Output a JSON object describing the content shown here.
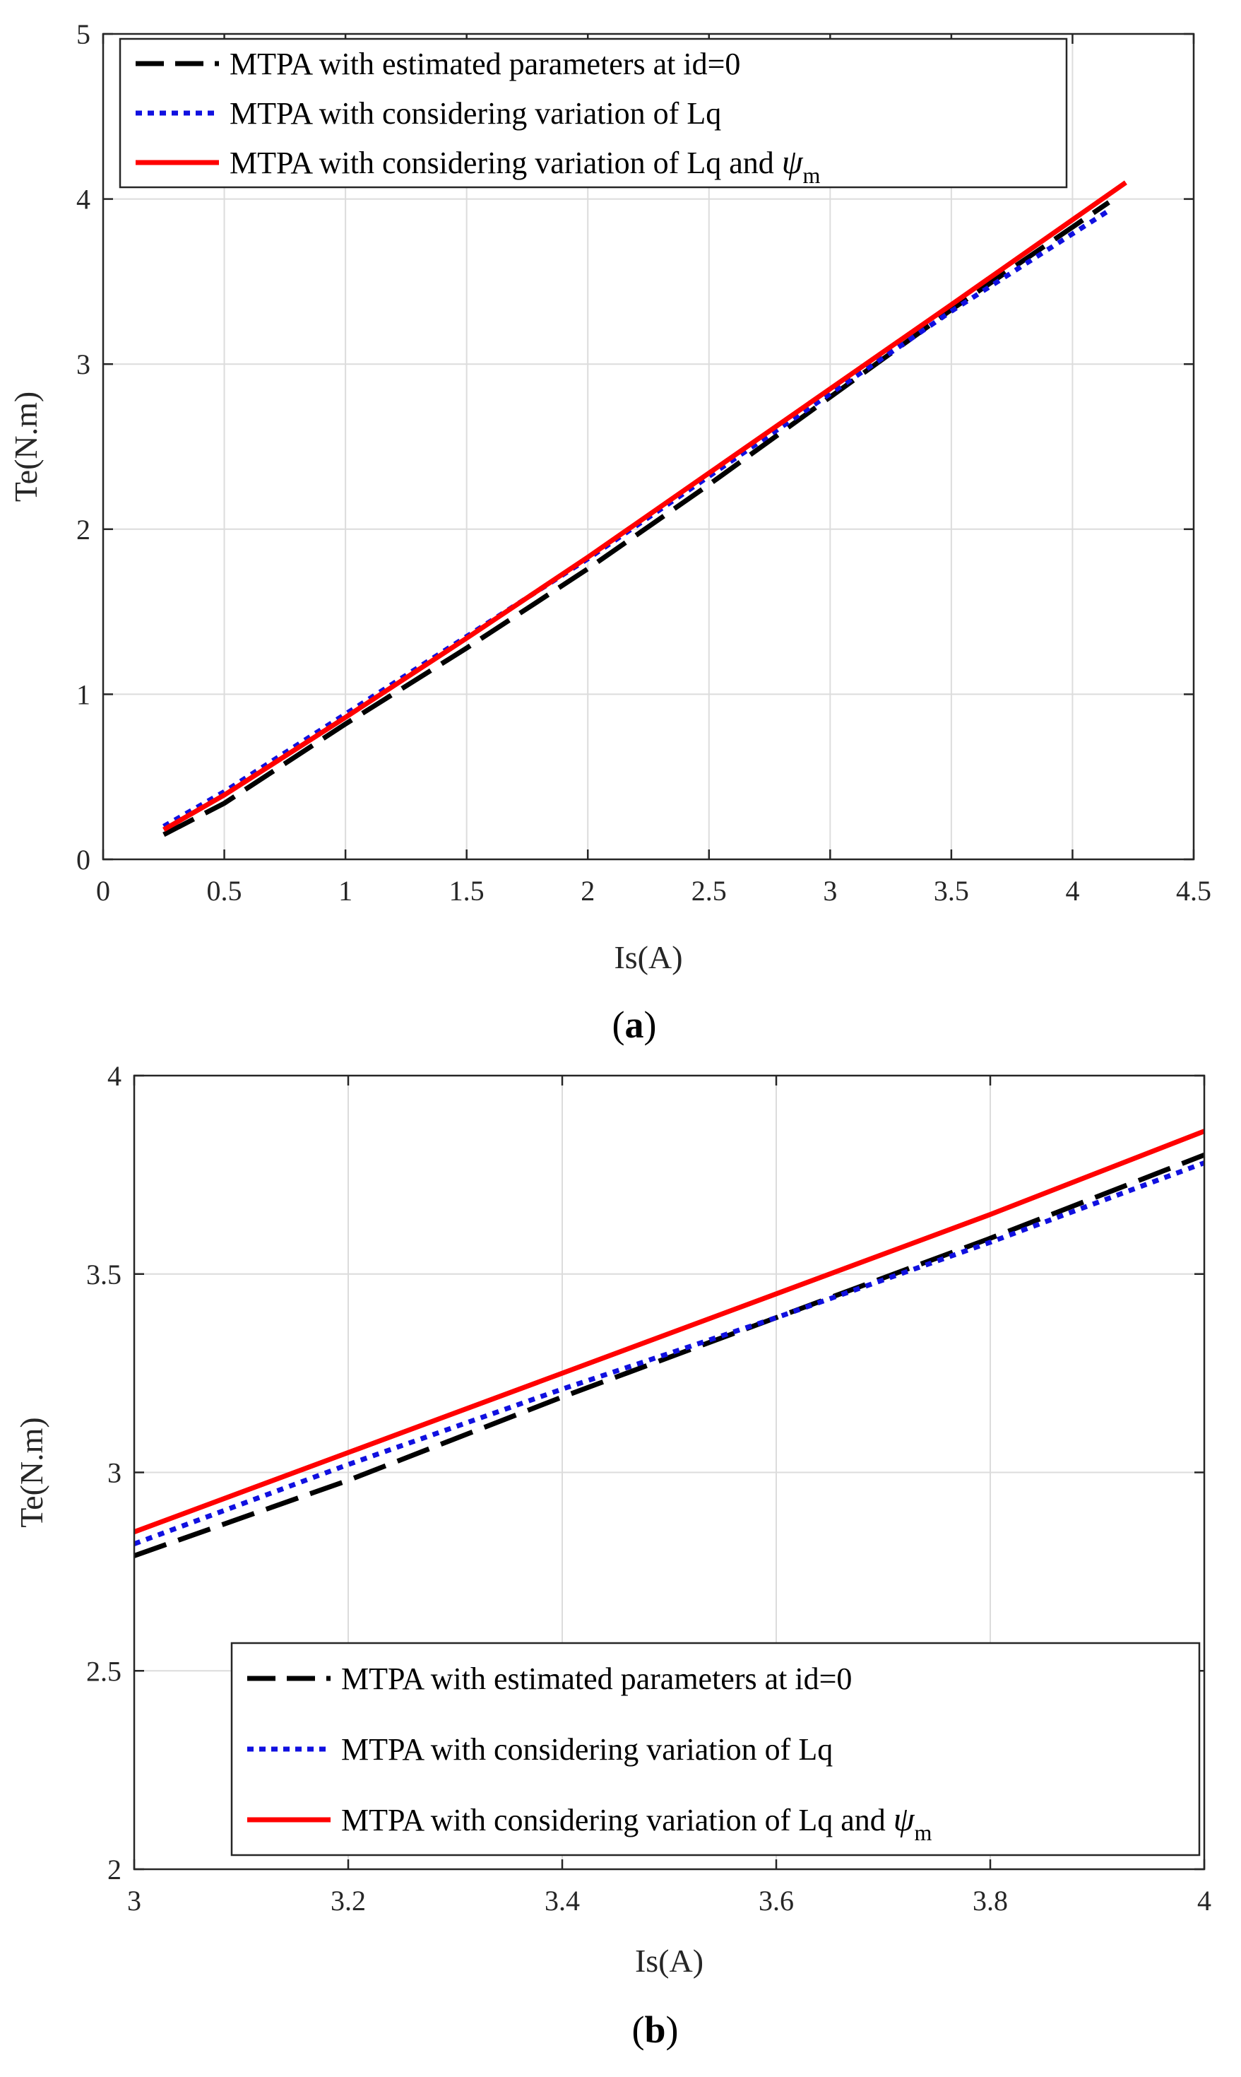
{
  "chart_data": [
    {
      "id": "a",
      "type": "line",
      "caption": {
        "open": "(",
        "letter": "a",
        "close": ")"
      },
      "xlabel": "Is(A)",
      "ylabel": "Te(N.m)",
      "xlim": [
        0,
        4.5
      ],
      "ylim": [
        0,
        5
      ],
      "xticks": [
        "0",
        "0.5",
        "1",
        "1.5",
        "2",
        "2.5",
        "3",
        "3.5",
        "4",
        "4.5"
      ],
      "yticks": [
        "0",
        "1",
        "2",
        "3",
        "4",
        "5"
      ],
      "grid": true,
      "legend_position": "top-left",
      "series": [
        {
          "name": "MTPA with estimated parameters at id=0",
          "color": "#000000",
          "style": "dashed",
          "x": [
            0.25,
            0.5,
            1.0,
            1.5,
            2.0,
            2.5,
            3.0,
            3.5,
            4.15
          ],
          "y": [
            0.15,
            0.34,
            0.82,
            1.28,
            1.76,
            2.27,
            2.8,
            3.33,
            3.98
          ]
        },
        {
          "name": "MTPA with considering variation of Lq",
          "color": "#1010e0",
          "style": "dotted",
          "x": [
            0.25,
            0.5,
            1.0,
            1.5,
            2.0,
            2.5,
            3.0,
            3.5,
            4.15
          ],
          "y": [
            0.2,
            0.41,
            0.88,
            1.35,
            1.82,
            2.32,
            2.82,
            3.32,
            3.93
          ]
        },
        {
          "name": "MTPA with considering variation of Lq and ",
          "name_greek": "ψ",
          "name_sub": "m",
          "color": "#ff0000",
          "style": "solid",
          "x": [
            0.25,
            0.5,
            1.0,
            1.5,
            2.0,
            2.5,
            3.0,
            3.5,
            4.22
          ],
          "y": [
            0.18,
            0.39,
            0.86,
            1.34,
            1.83,
            2.34,
            2.85,
            3.36,
            4.1
          ]
        }
      ]
    },
    {
      "id": "b",
      "type": "line",
      "caption": {
        "open": "(",
        "letter": "b",
        "close": ")"
      },
      "xlabel": "Is(A)",
      "ylabel": "Te(N.m)",
      "xlim": [
        3,
        4
      ],
      "ylim": [
        2,
        4
      ],
      "xticks": [
        "3",
        "3.2",
        "3.4",
        "3.6",
        "3.8",
        "4"
      ],
      "yticks": [
        "2",
        "2.5",
        "3",
        "3.5",
        "4"
      ],
      "grid": true,
      "legend_position": "bottom-right",
      "series": [
        {
          "name": "MTPA with estimated parameters at id=0",
          "color": "#000000",
          "style": "dashed",
          "x": [
            3.0,
            3.2,
            3.4,
            3.6,
            3.8,
            4.0
          ],
          "y": [
            2.79,
            2.98,
            3.19,
            3.39,
            3.59,
            3.8
          ]
        },
        {
          "name": "MTPA with considering variation of Lq",
          "color": "#1010e0",
          "style": "dotted",
          "x": [
            3.0,
            3.2,
            3.4,
            3.6,
            3.8,
            4.0
          ],
          "y": [
            2.82,
            3.02,
            3.21,
            3.39,
            3.58,
            3.78
          ]
        },
        {
          "name": "MTPA with considering variation of Lq and ",
          "name_greek": "ψ",
          "name_sub": "m",
          "color": "#ff0000",
          "style": "solid",
          "x": [
            3.0,
            3.2,
            3.4,
            3.6,
            3.8,
            4.0
          ],
          "y": [
            2.85,
            3.05,
            3.25,
            3.45,
            3.65,
            3.86
          ]
        }
      ]
    }
  ]
}
